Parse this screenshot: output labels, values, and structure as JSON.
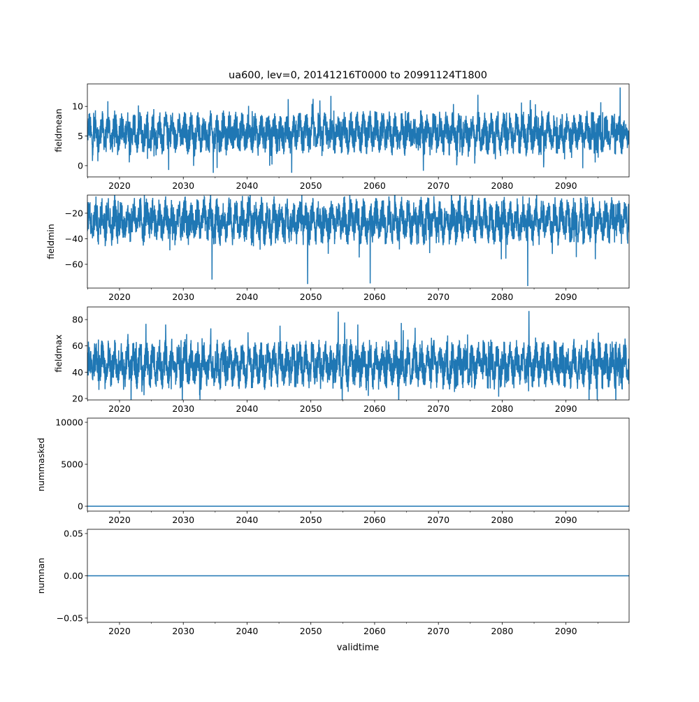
{
  "title": "ua600, lev=0, 20141216T0000 to 20991124T1800",
  "chart_data": {
    "type": "line",
    "xlabel": "validtime",
    "xlim": [
      2014.96,
      2099.9
    ],
    "x_major_ticks": [
      2020,
      2030,
      2040,
      2050,
      2060,
      2070,
      2080,
      2090
    ],
    "x_tick_labels": [
      "2020",
      "2030",
      "2040",
      "2050",
      "2060",
      "2070",
      "2080",
      "2090"
    ],
    "x_minor_ticks": [
      2015,
      2025,
      2035,
      2045,
      2055,
      2065,
      2075,
      2085,
      2095
    ],
    "line_color": "#1f77b4",
    "panels": [
      {
        "ylabel": "fieldmean",
        "ylim": [
          -1.9,
          13.8
        ],
        "yticks": [
          0,
          5,
          10
        ],
        "ytick_labels": [
          "0",
          "5",
          "10"
        ],
        "typical_low": 2.5,
        "typical_high": 9,
        "center": 5.5,
        "extremes": [
          {
            "x": 2098.5,
            "y": 13.2
          },
          {
            "x": 2047.0,
            "y": -1.2
          },
          {
            "x": 2035.3,
            "y": -0.4
          },
          {
            "x": 2086.5,
            "y": -0.3
          }
        ]
      },
      {
        "ylabel": "fieldmin",
        "ylim": [
          -78.6,
          -5.8
        ],
        "yticks": [
          -20,
          -40,
          -60
        ],
        "ytick_labels": [
          "−20",
          "−40",
          "−60"
        ],
        "typical_low": -45,
        "typical_high": -12,
        "center": -26,
        "extremes": [
          {
            "x": 2084.0,
            "y": -77.0
          },
          {
            "x": 2049.5,
            "y": -75.5
          },
          {
            "x": 2059.3,
            "y": -75.0
          },
          {
            "x": 2034.5,
            "y": -72.0
          }
        ]
      },
      {
        "ylabel": "fieldmax",
        "ylim": [
          18.9,
          89.6
        ],
        "yticks": [
          20,
          40,
          60,
          80
        ],
        "ytick_labels": [
          "20",
          "40",
          "60",
          "80"
        ],
        "typical_low": 32,
        "typical_high": 65,
        "center": 46,
        "extremes": [
          {
            "x": 2054.3,
            "y": 86.0
          },
          {
            "x": 2084.2,
            "y": 86.5
          },
          {
            "x": 2059.0,
            "y": 22.0
          },
          {
            "x": 2023.5,
            "y": 25.0
          }
        ]
      },
      {
        "ylabel": "nummasked",
        "ylim": [
          -580,
          10500
        ],
        "yticks": [
          0,
          5000,
          10000
        ],
        "ytick_labels": [
          "0",
          "5000",
          "10000"
        ],
        "constant": 0
      },
      {
        "ylabel": "numnan",
        "ylim": [
          -0.055,
          0.055
        ],
        "yticks": [
          -0.05,
          0.0,
          0.05
        ],
        "ytick_labels": [
          "−0.05",
          "0.00",
          "0.05"
        ],
        "constant": 0
      }
    ]
  }
}
